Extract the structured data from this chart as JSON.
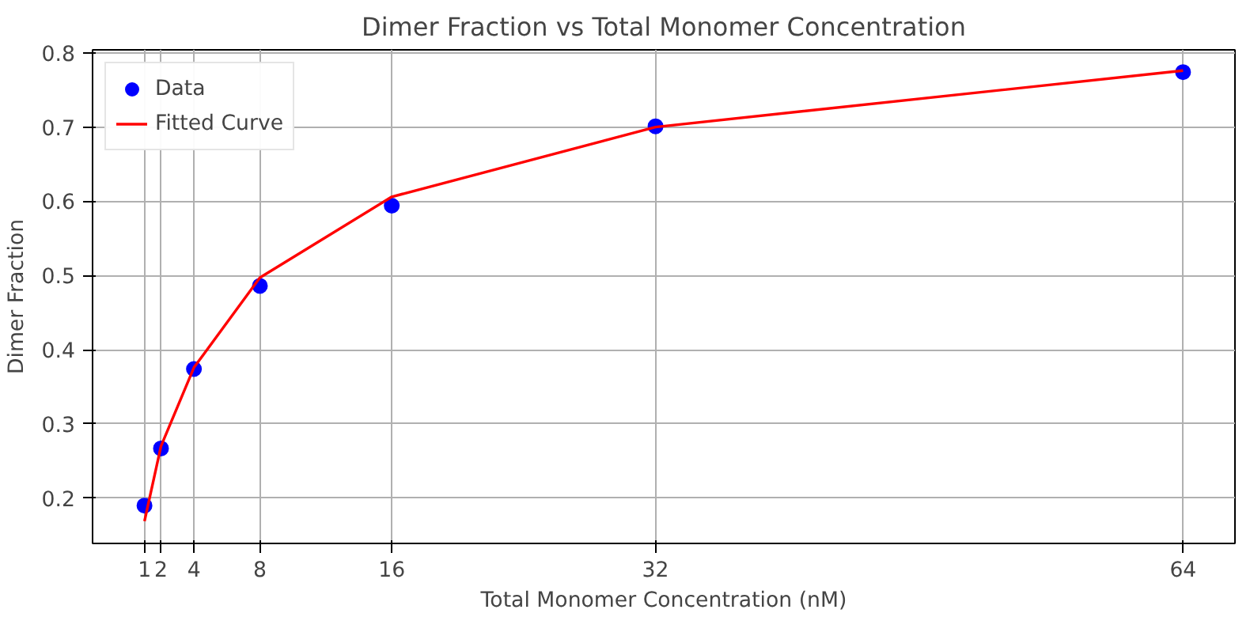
{
  "chart_data": {
    "type": "scatter",
    "title": "Dimer Fraction vs Total Monomer Concentration",
    "xlabel": "Total Monomer Concentration (nM)",
    "ylabel": "Dimer Fraction",
    "x": [
      1,
      2,
      4,
      8,
      16,
      32,
      64
    ],
    "series": [
      {
        "name": "Data",
        "color": "#0000ff",
        "marker": "circle",
        "values": [
          0.19,
          0.267,
          0.374,
          0.486,
          0.594,
          0.701,
          0.774
        ]
      },
      {
        "name": "Fitted Curve",
        "type": "line",
        "color": "#ff0000",
        "line_style": "solid",
        "values": [
          0.169,
          0.27,
          0.376,
          0.497,
          0.606,
          0.7,
          0.776
        ]
      }
    ],
    "xlim": [
      -2.15,
      67.15
    ],
    "xticks": [
      1,
      2,
      4,
      8,
      16,
      32,
      64
    ],
    "ylim": [
      0.139,
      0.804
    ],
    "yticks": [
      0.2,
      0.3,
      0.4,
      0.5,
      0.6,
      0.7,
      0.8
    ],
    "grid": true,
    "legend": "top left"
  }
}
